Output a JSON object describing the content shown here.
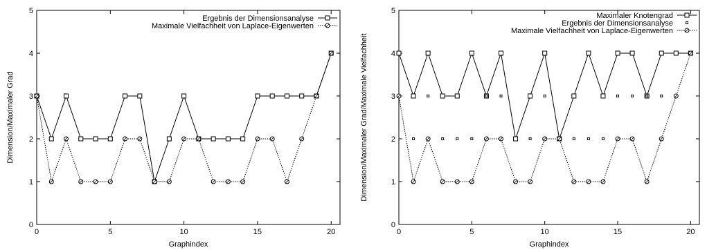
{
  "chart_data": [
    {
      "type": "line",
      "xlabel": "Graphindex",
      "ylabel": "Dimension/Maximaler Grad",
      "xlim": [
        0,
        20.6
      ],
      "ylim": [
        0,
        5
      ],
      "xticks": [
        0,
        5,
        10,
        15,
        20
      ],
      "yticks": [
        0,
        1,
        2,
        3,
        4,
        5
      ],
      "grid": false,
      "legend_position": "top-right",
      "x": [
        0,
        1,
        2,
        3,
        4,
        5,
        6,
        7,
        8,
        9,
        10,
        11,
        12,
        13,
        14,
        15,
        16,
        17,
        18,
        19,
        20
      ],
      "series": [
        {
          "name": "Ergebnis der Dimensionsanalyse",
          "style": "solid",
          "marker": "square",
          "values": [
            3,
            2,
            3,
            2,
            2,
            2,
            3,
            3,
            1,
            2,
            3,
            2,
            2,
            2,
            2,
            3,
            3,
            3,
            3,
            3,
            4
          ]
        },
        {
          "name": "Maximale Vielfachheit von Laplace-Eigenwerten",
          "style": "dotted",
          "marker": "circle",
          "values": [
            3,
            1,
            2,
            1,
            1,
            1,
            2,
            2,
            1,
            1,
            2,
            2,
            1,
            1,
            1,
            2,
            2,
            1,
            2,
            3,
            4
          ]
        }
      ]
    },
    {
      "type": "line",
      "xlabel": "Graphindex",
      "ylabel": "Dimension/Maximaler Grad/Maximale Vielfachheit",
      "xlim": [
        0,
        20.6
      ],
      "ylim": [
        0,
        5
      ],
      "xticks": [
        0,
        5,
        10,
        15,
        20
      ],
      "yticks": [
        0,
        1,
        2,
        3,
        4,
        5
      ],
      "grid": false,
      "legend_position": "top-right",
      "x": [
        0,
        1,
        2,
        3,
        4,
        5,
        6,
        7,
        8,
        9,
        10,
        11,
        12,
        13,
        14,
        15,
        16,
        17,
        18,
        19,
        20
      ],
      "series": [
        {
          "name": "Maximaler Knotengrad",
          "style": "solid",
          "marker": "square",
          "values": [
            4,
            3,
            4,
            3,
            3,
            4,
            3,
            4,
            2,
            3,
            4,
            2,
            3,
            4,
            3,
            4,
            4,
            3,
            4,
            4,
            4
          ]
        },
        {
          "name": "Ergebnis der Dimensionsanalyse",
          "style": "none",
          "marker": "small-square",
          "values": [
            3,
            2,
            3,
            2,
            2,
            2,
            3,
            3,
            1,
            2,
            3,
            2,
            2,
            2,
            2,
            3,
            3,
            3,
            3,
            3,
            4
          ]
        },
        {
          "name": "Maximale Vielfachheit von Laplace-Eigenwerten",
          "style": "dotted",
          "marker": "circle",
          "values": [
            3,
            1,
            2,
            1,
            1,
            1,
            2,
            2,
            1,
            1,
            2,
            2,
            1,
            1,
            1,
            2,
            2,
            1,
            2,
            3,
            4
          ]
        }
      ]
    }
  ]
}
